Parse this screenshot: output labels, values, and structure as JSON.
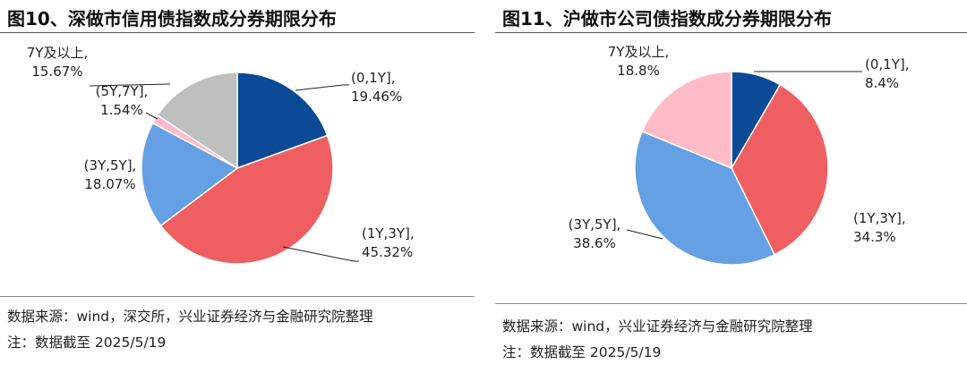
{
  "charts": [
    {
      "title": "图10、深做市信用债指数成分券期限分布",
      "source": "数据来源：wind，深交所，兴业证券经济与金融研究院整理",
      "note": "注：数据截至 2025/5/19"
    },
    {
      "title": "图11、沪做市公司债指数成分券期限分布",
      "source": "数据来源：wind，兴业证券经济与金融研究院整理",
      "note": "注：数据截至 2025/5/19"
    }
  ],
  "chart_data": [
    {
      "type": "pie",
      "title": "图10、深做市信用债指数成分券期限分布",
      "slices": [
        {
          "label": "(0,1Y]",
          "value": 19.46,
          "text": "19.46%",
          "color": "#0b4a96"
        },
        {
          "label": "(1Y,3Y]",
          "value": 45.32,
          "text": "45.32%",
          "color": "#ef5f62"
        },
        {
          "label": "(3Y,5Y]",
          "value": 18.07,
          "text": "18.07%",
          "color": "#64a0e3"
        },
        {
          "label": "(5Y,7Y]",
          "value": 1.54,
          "text": "1.54%",
          "color": "#ffbcc8"
        },
        {
          "label": "7Y及以上",
          "value": 15.67,
          "text": "15.67%",
          "color": "#bfbfbf"
        }
      ],
      "start": "12 o'clock",
      "direction": "clockwise"
    },
    {
      "type": "pie",
      "title": "图11、沪做市公司债指数成分券期限分布",
      "slices": [
        {
          "label": "(0,1Y]",
          "value": 8.4,
          "text": "8.4%",
          "color": "#0b4a96"
        },
        {
          "label": "(1Y,3Y]",
          "value": 34.3,
          "text": "34.3%",
          "color": "#ef5f62"
        },
        {
          "label": "(3Y,5Y]",
          "value": 38.6,
          "text": "38.6%",
          "color": "#64a0e3"
        },
        {
          "label": "7Y及以上",
          "value": 18.8,
          "text": "18.8%",
          "color": "#ffbcc8"
        }
      ],
      "start": "12 o'clock",
      "direction": "clockwise"
    }
  ]
}
